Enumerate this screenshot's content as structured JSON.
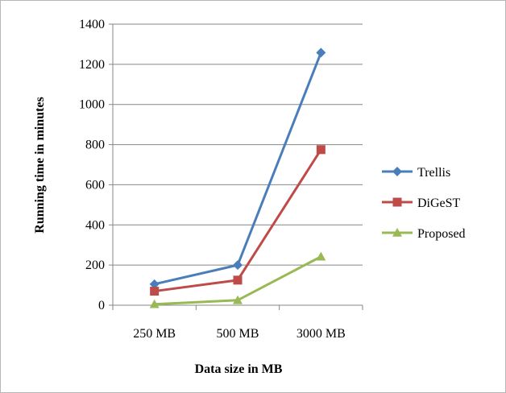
{
  "chart_data": {
    "type": "line",
    "categories": [
      "250 MB",
      "500 MB",
      "3000 MB"
    ],
    "series": [
      {
        "name": "Trellis",
        "values": [
          105,
          200,
          1258
        ],
        "color": "#4a7ebb",
        "marker": "diamond"
      },
      {
        "name": "DiGeST",
        "values": [
          70,
          125,
          775
        ],
        "color": "#be4b48",
        "marker": "square"
      },
      {
        "name": "Proposed",
        "values": [
          5,
          25,
          242
        ],
        "color": "#98b954",
        "marker": "triangle"
      }
    ],
    "xlabel": "Data size in MB",
    "ylabel": "Running time in minutes",
    "ylim": [
      0,
      1400
    ],
    "yticks": [
      0,
      200,
      400,
      600,
      800,
      1000,
      1200,
      1400
    ],
    "grid": true,
    "legend": "right"
  }
}
